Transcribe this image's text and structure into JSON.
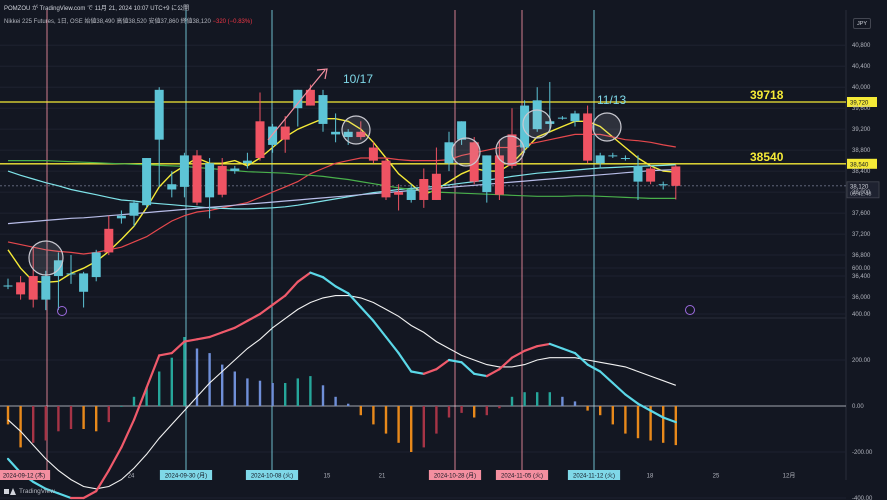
{
  "header": {
    "line1": "POMZOU が TradingView.com で 11月 21, 2024 10:07 UTC+9 に公開",
    "instrument": "Nikkei 225 Futures, 1日, OSE",
    "ohlc_open": "始値38,490",
    "ohlc_high": "高値38,520",
    "ohlc_low": "安値37,860",
    "ohlc_close": "終値38,120",
    "change": "−320 (−0.83%)",
    "currency": "JPY"
  },
  "footer": {
    "brand": "TradingView"
  },
  "colors": {
    "background": "#131722",
    "up": "#5dc4d6",
    "down": "#ef5363",
    "hline": "#f5ea37",
    "vline_red": "#f48fa0",
    "vline_blue": "#7fd8e8",
    "ma_fast": "#f5ea37",
    "ma_mid": "#e5484d",
    "ma_slow_up": "#7fe3e9",
    "ma_slow_low": "#49b04b",
    "ma_long": "#b8bde8",
    "macd_line_up": "#f05a6b",
    "macd_line_down": "#5bd8e8",
    "signal": "#f2f2f2",
    "hist_up_strong": "#26a69a",
    "hist_up_weak": "#6f8fd8",
    "hist_down_strong": "#e8891b",
    "hist_down_weak": "#a63446"
  },
  "chart_data": [
    {
      "type": "candlestick",
      "title": "Nikkei 225 Futures, 1日, OSE",
      "ylim": [
        35600,
        40900
      ],
      "yticks": [
        36000,
        36400,
        36800,
        37200,
        37600,
        38000,
        38400,
        38800,
        39200,
        39600,
        40000,
        40400,
        40800
      ],
      "ytick_labels": [
        "36,000",
        "36,400",
        "36,800",
        "37,200",
        "37,600",
        "38,000",
        "38,400",
        "38,800",
        "39,200",
        "39,600",
        "40,000",
        "40,400",
        "40,800"
      ],
      "grid": true,
      "candles": [
        {
          "o": 36200,
          "h": 36350,
          "l": 36150,
          "c": 36220
        },
        {
          "o": 36280,
          "h": 36400,
          "l": 35950,
          "c": 36050
        },
        {
          "o": 36400,
          "h": 36950,
          "l": 35800,
          "c": 35950
        },
        {
          "o": 35950,
          "h": 36500,
          "l": 35750,
          "c": 36400
        },
        {
          "o": 36400,
          "h": 36850,
          "l": 35750,
          "c": 36700
        },
        {
          "o": 36450,
          "h": 36800,
          "l": 36250,
          "c": 36450
        },
        {
          "o": 36100,
          "h": 36480,
          "l": 35800,
          "c": 36450
        },
        {
          "o": 36380,
          "h": 36900,
          "l": 36300,
          "c": 36850
        },
        {
          "o": 37300,
          "h": 37550,
          "l": 36800,
          "c": 36850
        },
        {
          "o": 37500,
          "h": 37650,
          "l": 37400,
          "c": 37550
        },
        {
          "o": 37550,
          "h": 37850,
          "l": 37350,
          "c": 37800
        },
        {
          "o": 37750,
          "h": 38650,
          "l": 37700,
          "c": 38650
        },
        {
          "o": 39000,
          "h": 40000,
          "l": 38100,
          "c": 39950
        },
        {
          "o": 38050,
          "h": 38400,
          "l": 37900,
          "c": 38150
        },
        {
          "o": 38100,
          "h": 38750,
          "l": 37900,
          "c": 38700
        },
        {
          "o": 38700,
          "h": 38800,
          "l": 37750,
          "c": 37800
        },
        {
          "o": 37900,
          "h": 38650,
          "l": 37500,
          "c": 38550
        },
        {
          "o": 38500,
          "h": 38650,
          "l": 37900,
          "c": 37950
        },
        {
          "o": 38400,
          "h": 38500,
          "l": 38350,
          "c": 38450
        },
        {
          "o": 38550,
          "h": 38750,
          "l": 38450,
          "c": 38600
        },
        {
          "o": 39350,
          "h": 39900,
          "l": 38600,
          "c": 38650
        },
        {
          "o": 38900,
          "h": 39300,
          "l": 38750,
          "c": 39250
        },
        {
          "o": 39250,
          "h": 39450,
          "l": 38750,
          "c": 39000
        },
        {
          "o": 39600,
          "h": 39950,
          "l": 39250,
          "c": 39950
        },
        {
          "o": 39950,
          "h": 40050,
          "l": 39650,
          "c": 39650
        },
        {
          "o": 39300,
          "h": 39950,
          "l": 39150,
          "c": 39850
        },
        {
          "o": 39100,
          "h": 39500,
          "l": 38950,
          "c": 39150
        },
        {
          "o": 39050,
          "h": 39200,
          "l": 38900,
          "c": 39150
        },
        {
          "o": 39150,
          "h": 39350,
          "l": 39000,
          "c": 39050
        },
        {
          "o": 38850,
          "h": 38950,
          "l": 38550,
          "c": 38600
        },
        {
          "o": 38600,
          "h": 38650,
          "l": 37850,
          "c": 37900
        },
        {
          "o": 38000,
          "h": 38150,
          "l": 37650,
          "c": 37950
        },
        {
          "o": 37850,
          "h": 38150,
          "l": 37800,
          "c": 38050
        },
        {
          "o": 38250,
          "h": 38450,
          "l": 37700,
          "c": 37850
        },
        {
          "o": 38350,
          "h": 38850,
          "l": 37850,
          "c": 37850
        },
        {
          "o": 38550,
          "h": 39150,
          "l": 38400,
          "c": 38950
        },
        {
          "o": 39000,
          "h": 39350,
          "l": 38900,
          "c": 39350
        },
        {
          "o": 38950,
          "h": 39050,
          "l": 38150,
          "c": 38200
        },
        {
          "o": 38000,
          "h": 38700,
          "l": 37800,
          "c": 38700
        },
        {
          "o": 38700,
          "h": 39000,
          "l": 37850,
          "c": 37950
        },
        {
          "o": 39100,
          "h": 39600,
          "l": 38450,
          "c": 38500
        },
        {
          "o": 38850,
          "h": 39750,
          "l": 38750,
          "c": 39650
        },
        {
          "o": 39200,
          "h": 40000,
          "l": 39150,
          "c": 39750
        },
        {
          "o": 39300,
          "h": 40100,
          "l": 39150,
          "c": 39350
        },
        {
          "o": 39400,
          "h": 39450,
          "l": 39380,
          "c": 39420
        },
        {
          "o": 39350,
          "h": 39550,
          "l": 39250,
          "c": 39500
        },
        {
          "o": 39500,
          "h": 39650,
          "l": 38550,
          "c": 38600
        },
        {
          "o": 38550,
          "h": 38750,
          "l": 38450,
          "c": 38700
        },
        {
          "o": 38700,
          "h": 38750,
          "l": 38650,
          "c": 38700
        },
        {
          "o": 38650,
          "h": 38700,
          "l": 38600,
          "c": 38650
        },
        {
          "o": 38200,
          "h": 38700,
          "l": 37850,
          "c": 38500
        },
        {
          "o": 38450,
          "h": 38500,
          "l": 38150,
          "c": 38200
        },
        {
          "o": 38150,
          "h": 38200,
          "l": 38050,
          "c": 38150
        },
        {
          "o": 38490,
          "h": 38520,
          "l": 37860,
          "c": 38120
        }
      ],
      "series": [
        {
          "name": "MA fast",
          "values": [
            36900,
            36550,
            36300,
            36280,
            36300,
            36450,
            36550,
            36680,
            36870,
            37100,
            37350,
            37700,
            38100,
            38350,
            38500,
            38650,
            38550,
            38550,
            38600,
            38500,
            38650,
            38850,
            39050,
            39200,
            39300,
            39400,
            39400,
            39350,
            39200,
            38950,
            38650,
            38350,
            38150,
            37950,
            38050,
            38200,
            38350,
            38450,
            38400,
            38400,
            38550,
            38800,
            39050,
            39150,
            39250,
            39350,
            39350,
            39250,
            39050,
            38850,
            38650,
            38500,
            38400,
            38380
          ]
        },
        {
          "name": "MA mid",
          "values": [
            37050,
            37000,
            36950,
            36900,
            36870,
            36850,
            36820,
            36850,
            36900,
            36950,
            37050,
            37150,
            37300,
            37450,
            37550,
            37620,
            37650,
            37700,
            37750,
            37800,
            37900,
            38000,
            38100,
            38200,
            38350,
            38450,
            38550,
            38600,
            38650,
            38650,
            38650,
            38620,
            38600,
            38600,
            38600,
            38620,
            38700,
            38750,
            38800,
            38850,
            38850,
            38900,
            38950,
            39000,
            39050,
            39100,
            39100,
            39100,
            39050,
            39000,
            38980,
            38950,
            38900,
            38860
          ]
        },
        {
          "name": "MA slow upper",
          "values": [
            38400,
            38320,
            38250,
            38180,
            38120,
            38050,
            38000,
            37950,
            37900,
            37850,
            37830,
            37800,
            37780,
            37760,
            37740,
            37720,
            37700,
            37690,
            37680,
            37680,
            37690,
            37700,
            37720,
            37750,
            37790,
            37830,
            37870,
            37910,
            37950,
            37990,
            38020,
            38050,
            38070,
            38090,
            38110,
            38140,
            38170,
            38200,
            38230,
            38260,
            38300,
            38330,
            38360,
            38380,
            38400,
            38420,
            38440,
            38460,
            38470,
            38480,
            38490,
            38500,
            38510,
            38520
          ]
        },
        {
          "name": "MA slow lower",
          "values": [
            38600,
            38600,
            38600,
            38600,
            38590,
            38580,
            38570,
            38560,
            38550,
            38540,
            38530,
            38520,
            38510,
            38500,
            38490,
            38470,
            38450,
            38430,
            38410,
            38390,
            38380,
            38370,
            38360,
            38340,
            38320,
            38300,
            38270,
            38240,
            38200,
            38160,
            38120,
            38080,
            38050,
            38020,
            38000,
            37990,
            37980,
            37970,
            37960,
            37950,
            37940,
            37930,
            37920,
            37920,
            37920,
            37930,
            37930,
            37920,
            37910,
            37900,
            37890,
            37880,
            37880,
            37880
          ]
        },
        {
          "name": "MA long",
          "values": [
            37400,
            37420,
            37440,
            37460,
            37480,
            37500,
            37510,
            37530,
            37550,
            37570,
            37590,
            37610,
            37630,
            37650,
            37670,
            37690,
            37710,
            37730,
            37750,
            37770,
            37790,
            37810,
            37830,
            37850,
            37870,
            37890,
            37910,
            37930,
            37950,
            37970,
            37990,
            38010,
            38030,
            38050,
            38070,
            38090,
            38110,
            38130,
            38150,
            38170,
            38190,
            38210,
            38230,
            38250,
            38270,
            38290,
            38310,
            38330,
            38350,
            38370,
            38390,
            38410,
            38420,
            38430
          ]
        }
      ],
      "hlines": [
        {
          "value": 39718,
          "label": "39718",
          "axis_label": "39,720"
        },
        {
          "value": 38540,
          "label": "38540",
          "axis_label": "38,540"
        }
      ],
      "last_price": {
        "value": 38120,
        "label": "38,120",
        "countdown": "05:42:48"
      },
      "annotations": [
        "10/17",
        "11/13"
      ]
    },
    {
      "type": "line",
      "title": "MACD",
      "ylim": [
        -500,
        700
      ],
      "yticks": [
        -400,
        -200,
        0,
        200,
        400,
        600
      ],
      "ytick_labels": [
        "-400.00",
        "-200.00",
        "0.00",
        "200.00",
        "400.00",
        "600.00"
      ],
      "x_labels": [
        "2024-09-12 (木)",
        "24",
        "2024-09-30 (月)",
        "2024-10-08 (火)",
        "15",
        "21",
        "2024-10-28 (月)",
        "2024-11-05 (火)",
        "2024-11-12 (火)",
        "18",
        "25",
        "12月"
      ],
      "series": [
        {
          "name": "MACD",
          "values": [
            -230,
            -290,
            -330,
            -360,
            -380,
            -400,
            -400,
            -370,
            -280,
            -180,
            -60,
            80,
            220,
            230,
            280,
            290,
            300,
            320,
            340,
            370,
            400,
            440,
            480,
            540,
            580,
            560,
            520,
            490,
            430,
            370,
            300,
            230,
            150,
            140,
            160,
            200,
            190,
            140,
            130,
            160,
            210,
            240,
            260,
            270,
            250,
            230,
            180,
            150,
            100,
            50,
            10,
            -20,
            -50,
            -70
          ]
        },
        {
          "name": "Signal",
          "values": [
            -60,
            -110,
            -170,
            -230,
            -280,
            -320,
            -350,
            -360,
            -350,
            -320,
            -270,
            -210,
            -140,
            -80,
            -20,
            40,
            100,
            150,
            200,
            250,
            290,
            340,
            380,
            420,
            450,
            470,
            480,
            480,
            470,
            450,
            420,
            390,
            350,
            320,
            280,
            250,
            220,
            200,
            180,
            170,
            170,
            180,
            200,
            210,
            210,
            210,
            200,
            190,
            180,
            170,
            150,
            130,
            110,
            90
          ]
        },
        {
          "name": "Histogram",
          "values": [
            -80,
            -180,
            -160,
            -150,
            -110,
            -100,
            -100,
            -110,
            -70,
            0,
            40,
            80,
            150,
            210,
            300,
            250,
            230,
            180,
            150,
            120,
            110,
            100,
            100,
            120,
            130,
            90,
            40,
            10,
            -40,
            -80,
            -120,
            -160,
            -200,
            -180,
            -120,
            -50,
            -30,
            -50,
            -40,
            -10,
            40,
            60,
            60,
            60,
            40,
            20,
            -20,
            -40,
            -80,
            -120,
            -140,
            -150,
            -160,
            -170
          ]
        }
      ]
    }
  ]
}
